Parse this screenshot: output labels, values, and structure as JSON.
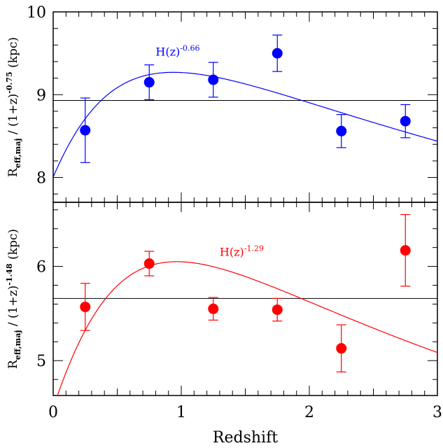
{
  "chart_data": [
    {
      "type": "scatter",
      "panel": "top",
      "color": "#0000ff",
      "ylabel": {
        "main": "R",
        "sub": "eff,maj",
        "rest": " / (1+z)",
        "sup": "-0.75",
        "units": " (kpc)"
      },
      "xlim": [
        0,
        3
      ],
      "ylim": [
        7.7,
        10
      ],
      "yticks": [
        8,
        9,
        10
      ],
      "yticklabels": [
        "8",
        "9",
        "10"
      ],
      "hline": 8.93,
      "points": [
        {
          "x": 0.25,
          "y": 8.57,
          "err_lo": 0.39,
          "err_hi": 0.39
        },
        {
          "x": 0.75,
          "y": 9.15,
          "err_lo": 0.21,
          "err_hi": 0.21
        },
        {
          "x": 1.25,
          "y": 9.18,
          "err_lo": 0.21,
          "err_hi": 0.21
        },
        {
          "x": 1.75,
          "y": 9.5,
          "err_lo": 0.22,
          "err_hi": 0.22
        },
        {
          "x": 2.25,
          "y": 8.56,
          "err_lo": 0.2,
          "err_hi": 0.2
        },
        {
          "x": 2.75,
          "y": 8.68,
          "err_lo": 0.2,
          "err_hi": 0.2
        }
      ],
      "curve": {
        "label_base": "H(z)",
        "label_exp": "-0.66",
        "exponent": -0.66,
        "norm": 9.27,
        "label_x": 0.8,
        "label_y": 9.47
      }
    },
    {
      "type": "scatter",
      "panel": "bottom",
      "color": "#ff0000",
      "ylabel": {
        "main": "R",
        "sub": "eff,maj",
        "rest": " / (1+z)",
        "sup": "-1.48",
        "units": " (kpc)"
      },
      "xlim": [
        0,
        3
      ],
      "ylim": [
        4.63,
        6.68
      ],
      "yticks": [
        5,
        6
      ],
      "yticklabels": [
        "5",
        "6"
      ],
      "hline": 5.66,
      "points": [
        {
          "x": 0.25,
          "y": 5.57,
          "err_lo": 0.25,
          "err_hi": 0.25
        },
        {
          "x": 0.75,
          "y": 6.03,
          "err_lo": 0.13,
          "err_hi": 0.13
        },
        {
          "x": 1.25,
          "y": 5.55,
          "err_lo": 0.12,
          "err_hi": 0.12
        },
        {
          "x": 1.75,
          "y": 5.54,
          "err_lo": 0.12,
          "err_hi": 0.12
        },
        {
          "x": 2.25,
          "y": 5.13,
          "err_lo": 0.25,
          "err_hi": 0.25
        },
        {
          "x": 2.75,
          "y": 6.17,
          "err_lo": 0.38,
          "err_hi": 0.38
        }
      ],
      "curve": {
        "label_base": "H(z)",
        "label_exp": "-1.29",
        "exponent": -1.29,
        "norm": 6.05,
        "label_x": 1.3,
        "label_y": 6.11
      }
    }
  ],
  "x_axis": {
    "label": "Redshift",
    "ticks": [
      0,
      1,
      2,
      3
    ],
    "ticklabels": [
      "0",
      "1",
      "2",
      "3"
    ]
  }
}
